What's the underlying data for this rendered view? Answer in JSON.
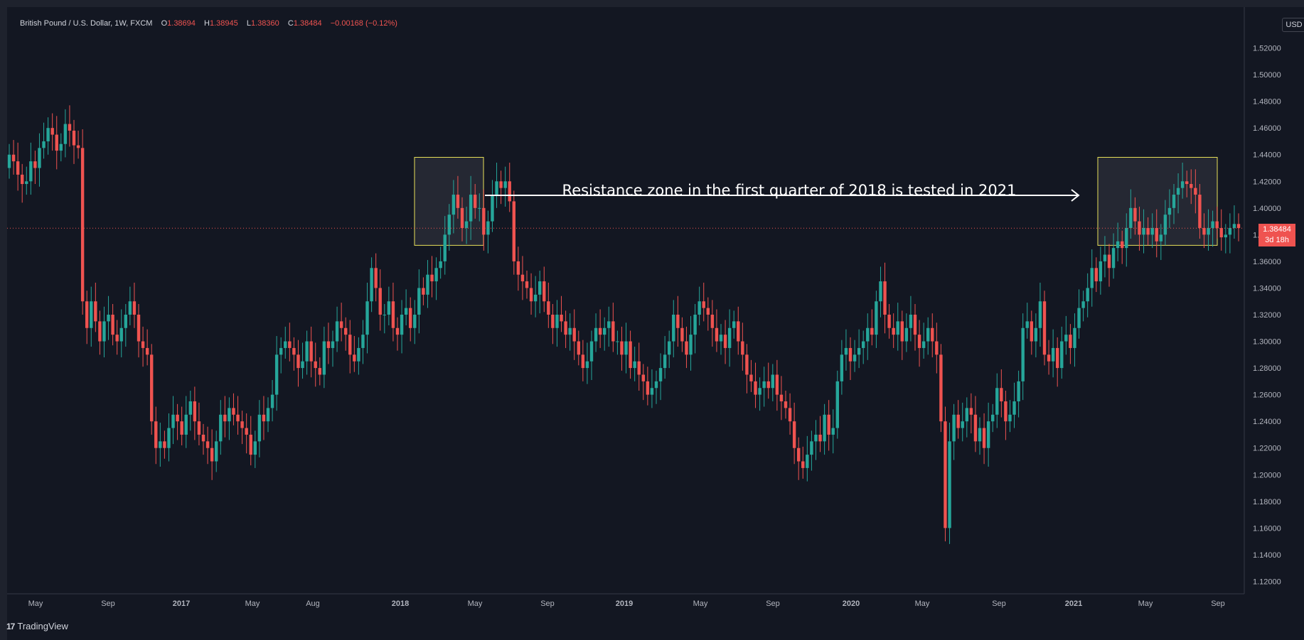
{
  "legend": {
    "symbol": "British Pound / U.S. Dollar, 1W, FXCM",
    "open_label": "O",
    "open": "1.38694",
    "high_label": "H",
    "high": "1.38945",
    "low_label": "L",
    "low": "1.38360",
    "close_label": "C",
    "close": "1.38484",
    "change": "−0.00168 (−0.12%)"
  },
  "currency": "USD",
  "last_price": {
    "value": "1.38484",
    "countdown": "3d 18h"
  },
  "annotation": "Resistance zone in the first quarter of 2018 is tested in 2021",
  "brand": {
    "logo": "17",
    "name": "TradingView"
  },
  "colors": {
    "background": "#131722",
    "frame": "#1e222d",
    "up": "#26a69a",
    "down": "#ef5350",
    "zone_border": "#e8e05a",
    "axis_text": "#b2b5be"
  },
  "chart_data": {
    "type": "candlestick",
    "title": "British Pound / U.S. Dollar, 1W, FXCM",
    "ylim": [
      1.1,
      1.54
    ],
    "y_ticks": [
      "1.12000",
      "1.14000",
      "1.16000",
      "1.18000",
      "1.20000",
      "1.22000",
      "1.24000",
      "1.26000",
      "1.28000",
      "1.30000",
      "1.32000",
      "1.34000",
      "1.36000",
      "1.38000",
      "1.40000",
      "1.42000",
      "1.44000",
      "1.46000",
      "1.48000",
      "1.50000",
      "1.52000"
    ],
    "x_ticks": [
      "May",
      "Sep",
      "2017",
      "May",
      "Aug",
      "2018",
      "May",
      "Sep",
      "2019",
      "May",
      "Sep",
      "2020",
      "May",
      "Sep",
      "2021",
      "May",
      "Sep"
    ],
    "series": [
      {
        "name": "",
        "values": [
          1.44,
          1.435,
          1.425,
          1.418,
          1.42,
          1.435,
          1.43,
          1.445,
          1.45,
          1.46,
          1.455,
          1.443,
          1.448,
          1.463,
          1.458,
          1.447,
          1.445,
          1.33,
          1.31,
          1.33,
          1.315,
          1.3,
          1.315,
          1.32,
          1.305,
          1.3,
          1.31,
          1.32,
          1.33,
          1.32,
          1.3,
          1.295,
          1.29,
          1.24,
          1.22,
          1.225,
          1.22,
          1.235,
          1.245,
          1.24,
          1.23,
          1.245,
          1.255,
          1.24,
          1.23,
          1.225,
          1.22,
          1.21,
          1.225,
          1.245,
          1.24,
          1.25,
          1.245,
          1.24,
          1.235,
          1.23,
          1.215,
          1.225,
          1.245,
          1.24,
          1.25,
          1.26,
          1.29,
          1.295,
          1.3,
          1.295,
          1.29,
          1.28,
          1.285,
          1.3,
          1.285,
          1.28,
          1.275,
          1.3,
          1.295,
          1.3,
          1.315,
          1.31,
          1.305,
          1.29,
          1.285,
          1.295,
          1.305,
          1.33,
          1.355,
          1.34,
          1.32,
          1.32,
          1.33,
          1.31,
          1.305,
          1.32,
          1.325,
          1.31,
          1.32,
          1.34,
          1.335,
          1.35,
          1.345,
          1.355,
          1.36,
          1.38,
          1.395,
          1.41,
          1.4,
          1.385,
          1.39,
          1.41,
          1.4,
          1.4,
          1.38,
          1.39,
          1.41,
          1.42,
          1.415,
          1.42,
          1.405,
          1.36,
          1.35,
          1.345,
          1.34,
          1.33,
          1.335,
          1.345,
          1.33,
          1.32,
          1.31,
          1.32,
          1.315,
          1.305,
          1.31,
          1.3,
          1.29,
          1.28,
          1.285,
          1.3,
          1.31,
          1.305,
          1.31,
          1.315,
          1.3,
          1.3,
          1.29,
          1.3,
          1.28,
          1.285,
          1.275,
          1.27,
          1.26,
          1.265,
          1.27,
          1.28,
          1.29,
          1.3,
          1.32,
          1.31,
          1.3,
          1.29,
          1.305,
          1.32,
          1.33,
          1.325,
          1.32,
          1.31,
          1.3,
          1.305,
          1.295,
          1.31,
          1.315,
          1.3,
          1.29,
          1.275,
          1.27,
          1.26,
          1.265,
          1.27,
          1.265,
          1.275,
          1.26,
          1.255,
          1.25,
          1.24,
          1.22,
          1.21,
          1.205,
          1.215,
          1.225,
          1.23,
          1.225,
          1.245,
          1.23,
          1.235,
          1.27,
          1.29,
          1.295,
          1.285,
          1.29,
          1.295,
          1.3,
          1.31,
          1.305,
          1.33,
          1.345,
          1.32,
          1.31,
          1.305,
          1.315,
          1.3,
          1.31,
          1.32,
          1.305,
          1.295,
          1.3,
          1.31,
          1.3,
          1.29,
          1.24,
          1.16,
          1.225,
          1.245,
          1.235,
          1.24,
          1.25,
          1.245,
          1.225,
          1.235,
          1.22,
          1.24,
          1.245,
          1.265,
          1.255,
          1.24,
          1.245,
          1.255,
          1.27,
          1.31,
          1.315,
          1.3,
          1.31,
          1.33,
          1.29,
          1.285,
          1.295,
          1.28,
          1.3,
          1.305,
          1.295,
          1.31,
          1.325,
          1.33,
          1.34,
          1.355,
          1.345,
          1.36,
          1.365,
          1.355,
          1.37,
          1.375,
          1.37,
          1.385,
          1.4,
          1.39,
          1.38,
          1.385,
          1.38,
          1.385,
          1.375,
          1.38,
          1.395,
          1.4,
          1.41,
          1.415,
          1.42,
          1.418,
          1.415,
          1.41,
          1.385,
          1.38,
          1.385,
          1.39,
          1.385,
          1.378,
          1.38,
          1.385,
          1.388,
          1.385
        ]
      }
    ],
    "zones": [
      {
        "start": "2018-01",
        "end": "2018-04",
        "low": 1.372,
        "high": 1.438
      },
      {
        "start": "2021-02",
        "end": "2021-08",
        "low": 1.372,
        "high": 1.438
      }
    ],
    "last_value": 1.38484,
    "grid": false
  }
}
